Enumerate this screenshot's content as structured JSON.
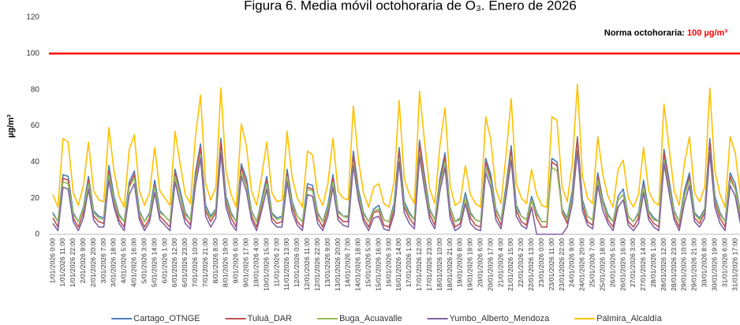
{
  "chart_data": {
    "type": "line",
    "title": "Figura 6. Media móvil octohoraria de O₃. Enero de 2026",
    "y_label": "µg/m³",
    "annotation_label": "Norma octohoraria:",
    "annotation_value": "100 µg/m³",
    "threshold": 100,
    "threshold_color": "#ff0000",
    "ylim": [
      0,
      120
    ],
    "yticks": [
      0,
      20,
      40,
      60,
      80,
      100,
      120
    ],
    "grid": false,
    "legend": "bottom",
    "categories": [
      "1/01/2026 0:00",
      null,
      "1/01/2026 11:00",
      null,
      "1/01/2026 22:00",
      null,
      "2/01/2026 9:00",
      null,
      "2/01/2026 20:00",
      null,
      "3/01/2026 7:00",
      null,
      "3/01/2026 18:00",
      null,
      "4/01/2026 5:00",
      null,
      "4/01/2026 16:00",
      null,
      "5/01/2026 3:00",
      null,
      "5/01/2026 14:00",
      null,
      "6/01/2026 1:00",
      null,
      "6/01/2026 12:00",
      null,
      "6/01/2026 23:00",
      null,
      "7/01/2026 10:00",
      null,
      "7/01/2026 21:00",
      null,
      "8/01/2026 8:00",
      null,
      "8/01/2026 19:00",
      null,
      "9/01/2026 6:00",
      null,
      "9/01/2026 17:00",
      null,
      "10/01/2026 4:00",
      null,
      "10/01/2026 15:00",
      null,
      "11/01/2026 2:00",
      null,
      "11/01/2026 13:00",
      null,
      "12/01/2026 0:00",
      null,
      "12/01/2026 11:00",
      null,
      "12/01/2026 22:00",
      null,
      "13/01/2026 9:00",
      null,
      "13/01/2026 20:00",
      null,
      "14/01/2026 7:00",
      null,
      "14/01/2026 18:00",
      null,
      "15/01/2026 5:00",
      null,
      "15/01/2026 16:00",
      null,
      "16/01/2026 3:00",
      null,
      "16/01/2026 14:00",
      null,
      "17/01/2026 1:00",
      null,
      "17/01/2026 12:00",
      null,
      "17/01/2026 23:00",
      null,
      "18/01/2026 10:00",
      null,
      "18/01/2026 21:00",
      null,
      "19/01/2026 8:00",
      null,
      "19/01/2026 19:00",
      null,
      "20/01/2026 6:00",
      null,
      "20/01/2026 17:00",
      null,
      "21/01/2026 4:00",
      null,
      "21/01/2026 15:00",
      null,
      "22/01/2026 2:00",
      null,
      "22/01/2026 13:00",
      null,
      "23/01/2026 0:00",
      null,
      "23/01/2026 11:00",
      null,
      "23/01/2026 22:00",
      null,
      "24/01/2026 9:00",
      null,
      "24/01/2026 20:00",
      null,
      "25/01/2026 7:00",
      null,
      "25/01/2026 18:00",
      null,
      "26/01/2026 5:00",
      null,
      "26/01/2026 16:00",
      null,
      "27/01/2026 3:00",
      null,
      "27/01/2026 14:00",
      null,
      "28/01/2026 1:00",
      null,
      "28/01/2026 12:00",
      null,
      "28/01/2026 23:00",
      null,
      "29/01/2026 10:00",
      null,
      "29/01/2026 21:00",
      null,
      "30/01/2026 8:00",
      null,
      "30/01/2026 19:00",
      null,
      "31/01/2026 6:00",
      null,
      "31/01/2026 17:00",
      null
    ],
    "series": [
      {
        "name": "Cartago_OTNGE",
        "color": "#4a7ebb",
        "values": [
          12,
          7,
          33,
          32,
          12,
          7,
          15,
          32,
          13,
          10,
          9,
          38,
          21,
          11,
          7,
          29,
          35,
          13,
          7,
          12,
          30,
          13,
          10,
          7,
          36,
          24,
          12,
          8,
          34,
          50,
          16,
          10,
          14,
          53,
          21,
          12,
          7,
          39,
          31,
          13,
          7,
          19,
          32,
          12,
          9,
          10,
          36,
          18,
          10,
          7,
          28,
          27,
          12,
          7,
          16,
          33,
          13,
          10,
          10,
          46,
          25,
          12,
          7,
          14,
          16,
          8,
          7,
          17,
          48,
          18,
          12,
          8,
          52,
          32,
          14,
          8,
          31,
          45,
          15,
          7,
          9,
          23,
          12,
          8,
          7,
          42,
          33,
          14,
          8,
          27,
          49,
          16,
          10,
          8,
          21,
          12,
          7,
          7,
          42,
          40,
          14,
          9,
          24,
          54,
          19,
          10,
          8,
          34,
          19,
          11,
          7,
          21,
          25,
          10,
          7,
          12,
          30,
          13,
          9,
          7,
          47,
          30,
          13,
          7,
          24,
          34,
          12,
          9,
          14,
          53,
          21,
          12,
          7,
          34,
          28,
          12
        ]
      },
      {
        "name": "Tuluá_DAR",
        "color": "#c0504d",
        "values": [
          9,
          4,
          31,
          30,
          9,
          4,
          12,
          30,
          10,
          7,
          6,
          35,
          18,
          8,
          4,
          27,
          33,
          10,
          4,
          9,
          27,
          10,
          7,
          4,
          34,
          21,
          9,
          5,
          32,
          48,
          13,
          7,
          12,
          51,
          18,
          9,
          4,
          37,
          28,
          10,
          4,
          16,
          30,
          9,
          6,
          7,
          34,
          15,
          7,
          4,
          26,
          25,
          9,
          4,
          13,
          31,
          10,
          7,
          7,
          44,
          22,
          9,
          4,
          12,
          13,
          5,
          4,
          14,
          46,
          15,
          9,
          5,
          50,
          30,
          11,
          5,
          28,
          43,
          12,
          4,
          6,
          20,
          9,
          5,
          4,
          40,
          30,
          11,
          5,
          25,
          47,
          13,
          7,
          5,
          19,
          9,
          4,
          4,
          40,
          38,
          12,
          6,
          21,
          53,
          16,
          7,
          5,
          32,
          17,
          8,
          4,
          19,
          22,
          7,
          4,
          9,
          27,
          10,
          6,
          4,
          45,
          27,
          10,
          4,
          21,
          32,
          9,
          6,
          12,
          51,
          18,
          9,
          4,
          32,
          25,
          9
        ]
      },
      {
        "name": "Buga_Acuavalle",
        "color": "#9bbb59",
        "values": [
          11,
          7,
          29,
          28,
          11,
          7,
          14,
          28,
          12,
          9,
          8,
          33,
          19,
          10,
          7,
          26,
          31,
          12,
          7,
          11,
          26,
          12,
          10,
          7,
          32,
          21,
          11,
          8,
          30,
          44,
          14,
          9,
          13,
          46,
          19,
          11,
          7,
          34,
          27,
          12,
          7,
          17,
          28,
          11,
          8,
          9,
          32,
          16,
          10,
          7,
          25,
          24,
          11,
          7,
          14,
          29,
          12,
          10,
          9,
          40,
          22,
          11,
          7,
          13,
          14,
          8,
          7,
          15,
          42,
          16,
          11,
          8,
          45,
          28,
          13,
          8,
          27,
          40,
          14,
          7,
          8,
          20,
          11,
          8,
          7,
          37,
          29,
          13,
          8,
          24,
          43,
          14,
          10,
          8,
          19,
          11,
          7,
          7,
          37,
          35,
          13,
          8,
          21,
          47,
          17,
          10,
          8,
          30,
          17,
          10,
          7,
          19,
          22,
          10,
          7,
          11,
          26,
          12,
          8,
          7,
          41,
          26,
          12,
          7,
          21,
          30,
          11,
          8,
          13,
          46,
          19,
          11,
          7,
          30,
          25,
          11
        ]
      },
      {
        "name": "Yumbo_Alberto_Mendoza",
        "color": "#8064a2",
        "values": [
          6,
          2,
          26,
          25,
          7,
          2,
          9,
          25,
          8,
          4,
          4,
          30,
          15,
          6,
          2,
          22,
          28,
          8,
          2,
          7,
          23,
          8,
          5,
          2,
          29,
          17,
          6,
          3,
          27,
          42,
          10,
          4,
          9,
          45,
          15,
          6,
          2,
          32,
          24,
          8,
          2,
          13,
          25,
          7,
          4,
          4,
          29,
          12,
          5,
          2,
          22,
          21,
          6,
          2,
          10,
          26,
          8,
          5,
          4,
          38,
          19,
          7,
          2,
          9,
          10,
          3,
          2,
          11,
          40,
          12,
          6,
          3,
          43,
          25,
          8,
          3,
          24,
          37,
          9,
          2,
          4,
          17,
          6,
          3,
          2,
          34,
          26,
          8,
          3,
          21,
          41,
          10,
          5,
          3,
          15,
          0,
          0,
          0,
          0,
          0,
          0,
          4,
          17,
          46,
          13,
          5,
          3,
          27,
          13,
          6,
          2,
          15,
          19,
          5,
          2,
          6,
          23,
          8,
          4,
          2,
          39,
          23,
          8,
          2,
          17,
          27,
          7,
          4,
          9,
          45,
          15,
          6,
          2,
          27,
          21,
          6
        ]
      },
      {
        "name": "Palmira_Alcaldía",
        "color": "#ffc000",
        "values": [
          22,
          15,
          53,
          51,
          23,
          16,
          27,
          51,
          24,
          19,
          18,
          59,
          35,
          21,
          15,
          47,
          55,
          24,
          16,
          23,
          48,
          24,
          20,
          16,
          57,
          39,
          22,
          17,
          54,
          77,
          28,
          19,
          26,
          81,
          35,
          22,
          15,
          61,
          49,
          24,
          16,
          32,
          51,
          23,
          18,
          19,
          57,
          31,
          20,
          15,
          46,
          44,
          22,
          16,
          28,
          53,
          24,
          20,
          19,
          71,
          41,
          23,
          15,
          26,
          28,
          17,
          15,
          29,
          74,
          31,
          22,
          17,
          79,
          51,
          25,
          17,
          49,
          70,
          27,
          16,
          18,
          38,
          22,
          17,
          15,
          65,
          52,
          25,
          17,
          44,
          75,
          28,
          20,
          17,
          36,
          22,
          16,
          15,
          65,
          63,
          26,
          18,
          39,
          83,
          32,
          20,
          17,
          54,
          33,
          21,
          15,
          36,
          41,
          20,
          15,
          22,
          48,
          24,
          18,
          16,
          72,
          48,
          24,
          16,
          39,
          54,
          23,
          18,
          26,
          81,
          35,
          22,
          15,
          54,
          45,
          22
        ]
      }
    ]
  }
}
